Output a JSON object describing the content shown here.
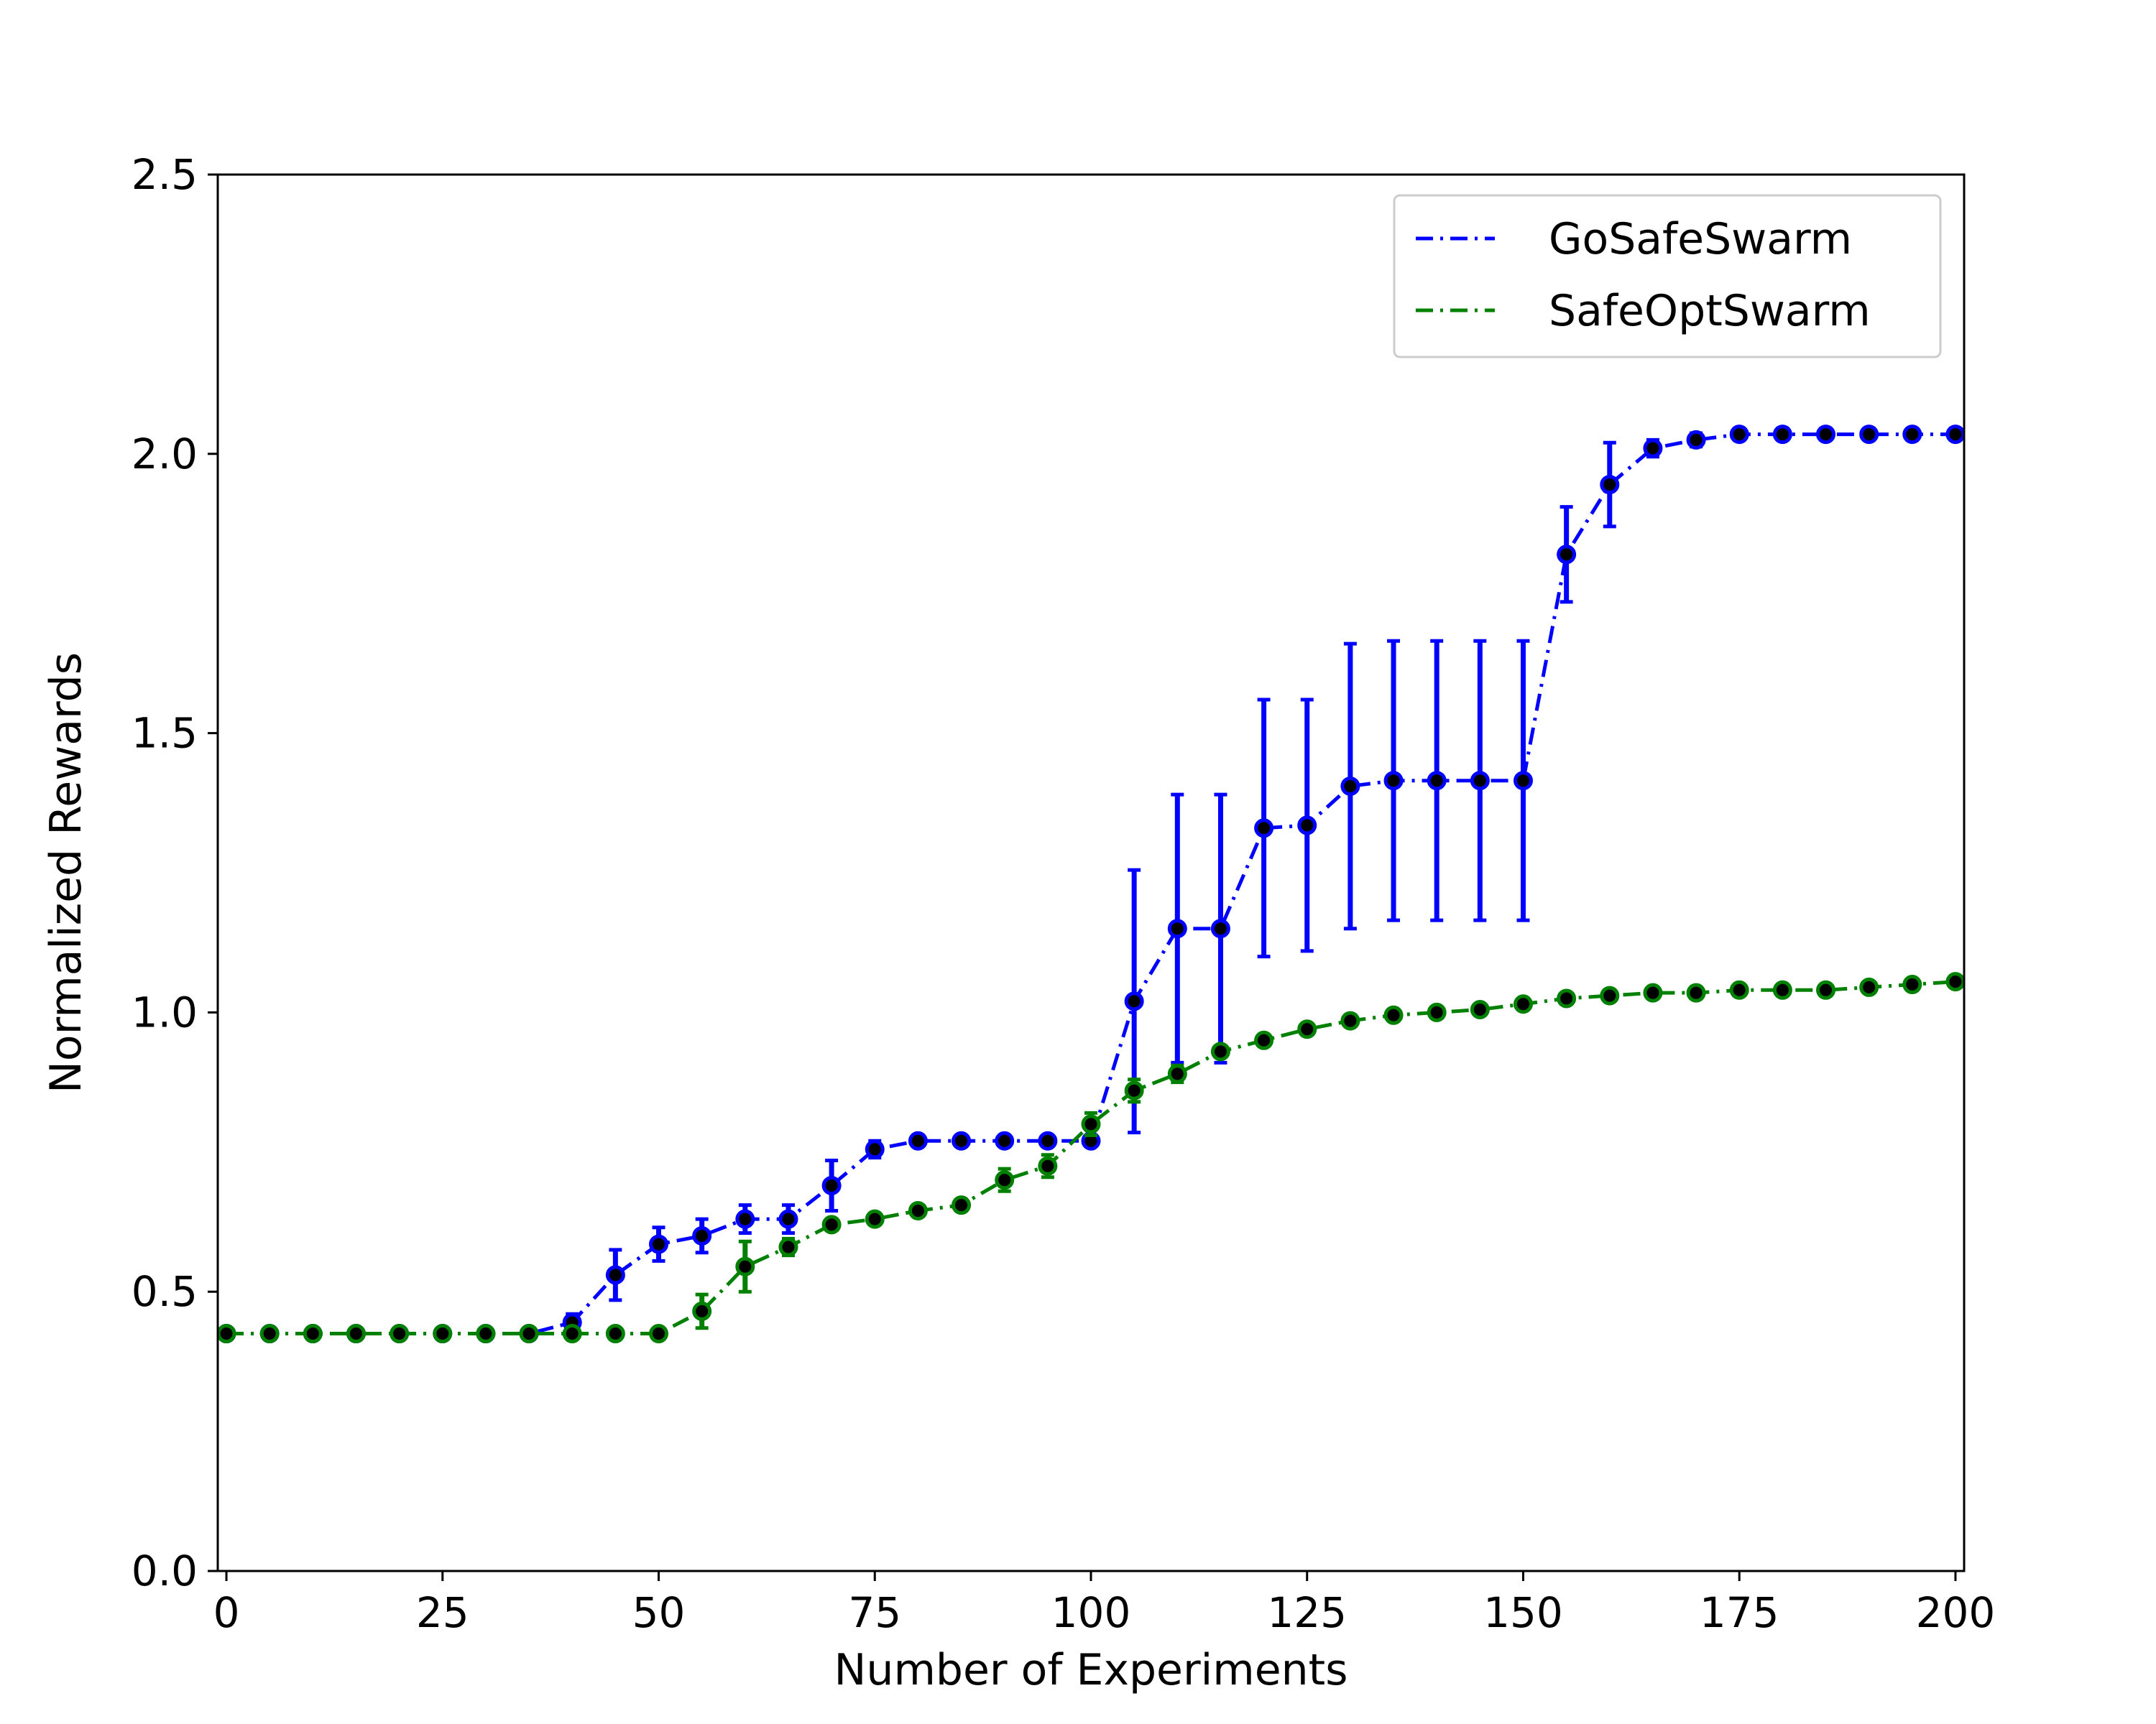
{
  "chart_data": {
    "type": "line",
    "title": "",
    "xlabel": "Number of Experiments",
    "ylabel": "Normalized Rewards",
    "xlim": [
      -1,
      201
    ],
    "ylim": [
      0.0,
      2.5
    ],
    "xticks": [
      0,
      25,
      50,
      75,
      100,
      125,
      150,
      175,
      200
    ],
    "yticks": [
      0.0,
      0.5,
      1.0,
      1.5,
      2.0,
      2.5
    ],
    "xtick_labels": [
      "0",
      "25",
      "50",
      "75",
      "100",
      "125",
      "150",
      "175",
      "200"
    ],
    "ytick_labels": [
      "0.0",
      "0.5",
      "1.0",
      "1.5",
      "2.0",
      "2.5"
    ],
    "grid": false,
    "legend_position": "top-right",
    "x": [
      0,
      5,
      10,
      15,
      20,
      25,
      30,
      35,
      40,
      45,
      50,
      55,
      60,
      65,
      70,
      75,
      80,
      85,
      90,
      95,
      100,
      105,
      110,
      115,
      120,
      125,
      130,
      135,
      140,
      145,
      150,
      155,
      160,
      165,
      170,
      175,
      180,
      185,
      190,
      195,
      200
    ],
    "series": [
      {
        "name": "GoSafeSwarm",
        "color": "#0000ff",
        "values": [
          0.425,
          0.425,
          0.425,
          0.425,
          0.425,
          0.425,
          0.425,
          0.425,
          0.445,
          0.53,
          0.585,
          0.6,
          0.63,
          0.63,
          0.69,
          0.755,
          0.77,
          0.77,
          0.77,
          0.77,
          0.77,
          1.02,
          1.15,
          1.15,
          1.33,
          1.335,
          1.405,
          1.415,
          1.415,
          1.415,
          1.415,
          1.82,
          1.945,
          2.01,
          2.025,
          2.035,
          2.035,
          2.035,
          2.035,
          2.035,
          2.035
        ],
        "errors": [
          0,
          0,
          0,
          0,
          0,
          0,
          0,
          0,
          0.015,
          0.045,
          0.03,
          0.03,
          0.025,
          0.025,
          0.045,
          0.015,
          0.01,
          0,
          0,
          0,
          0,
          0.235,
          0.24,
          0.24,
          0.23,
          0.225,
          0.255,
          0.25,
          0.25,
          0.25,
          0.25,
          0.085,
          0.075,
          0.015,
          0.012,
          0.01,
          0.01,
          0.01,
          0.01,
          0.01,
          0.01
        ]
      },
      {
        "name": "SafeOptSwarm",
        "color": "#008000",
        "values": [
          0.425,
          0.425,
          0.425,
          0.425,
          0.425,
          0.425,
          0.425,
          0.425,
          0.425,
          0.425,
          0.425,
          0.465,
          0.545,
          0.58,
          0.62,
          0.63,
          0.645,
          0.655,
          0.7,
          0.725,
          0.8,
          0.86,
          0.89,
          0.93,
          0.95,
          0.97,
          0.985,
          0.995,
          1.0,
          1.005,
          1.015,
          1.025,
          1.03,
          1.035,
          1.035,
          1.04,
          1.04,
          1.04,
          1.045,
          1.05,
          1.055
        ],
        "errors": [
          0,
          0,
          0,
          0,
          0,
          0,
          0,
          0,
          0,
          0,
          0,
          0.03,
          0.045,
          0.015,
          0.01,
          0.01,
          0.01,
          0.01,
          0.02,
          0.02,
          0.02,
          0.02,
          0.015,
          0.01,
          0.01,
          0.01,
          0.01,
          0.01,
          0.01,
          0.008,
          0.008,
          0.008,
          0.008,
          0.005,
          0.005,
          0.005,
          0.005,
          0.005,
          0.005,
          0.005,
          0.005
        ]
      }
    ]
  }
}
